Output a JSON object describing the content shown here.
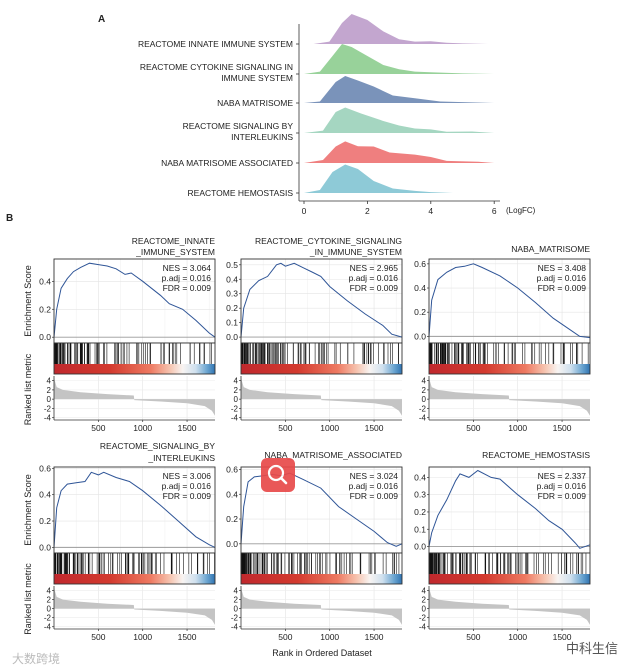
{
  "figure": {
    "panel_a_label": "A",
    "panel_b_label": "B",
    "watermark_left": "大数跨境",
    "watermark_right": "中科生信"
  },
  "chart_data": [
    {
      "type": "area",
      "subtype": "ridgeline",
      "xlabel": "(LogFC)",
      "xlim": [
        0,
        6
      ],
      "xticks": [
        0,
        2,
        4,
        6
      ],
      "series": [
        {
          "name": "REACTOME INNATE IMMUNE SYSTEM",
          "label_lines": [
            "REACTOME INNATE IMMUNE SYSTEM"
          ],
          "color": "#c3a6cf",
          "points": [
            [
              0.3,
              0
            ],
            [
              0.8,
              0.08
            ],
            [
              1.2,
              0.7
            ],
            [
              1.5,
              1
            ],
            [
              2.0,
              0.8
            ],
            [
              2.5,
              0.42
            ],
            [
              3.0,
              0.16
            ],
            [
              3.5,
              0.08
            ],
            [
              4.0,
              0.09
            ],
            [
              4.5,
              0.04
            ],
            [
              5.0,
              0.02
            ],
            [
              5.8,
              0
            ]
          ]
        },
        {
          "name": "REACTOME CYTOKINE SIGNALING IN IMMUNE SYSTEM",
          "label_lines": [
            "REACTOME CYTOKINE SIGNALING IN",
            "IMMUNE SYSTEM"
          ],
          "color": "#98d29a",
          "points": [
            [
              0,
              0
            ],
            [
              0.5,
              0.08
            ],
            [
              0.9,
              0.6
            ],
            [
              1.2,
              1
            ],
            [
              1.5,
              0.9
            ],
            [
              2.0,
              0.6
            ],
            [
              2.5,
              0.3
            ],
            [
              3.0,
              0.16
            ],
            [
              3.5,
              0.08
            ],
            [
              4.0,
              0.06
            ],
            [
              5.0,
              0.02
            ],
            [
              6.0,
              0
            ]
          ]
        },
        {
          "name": "NABA MATRISOME",
          "label_lines": [
            "NABA MATRISOME"
          ],
          "color": "#7a93ba",
          "points": [
            [
              0,
              0
            ],
            [
              0.5,
              0.05
            ],
            [
              1.0,
              0.7
            ],
            [
              1.3,
              0.9
            ],
            [
              1.7,
              0.75
            ],
            [
              2.2,
              0.55
            ],
            [
              2.8,
              0.25
            ],
            [
              3.5,
              0.16
            ],
            [
              4.3,
              0.05
            ],
            [
              6.0,
              0
            ]
          ]
        },
        {
          "name": "REACTOME SIGNALING BY INTERLEUKINS",
          "label_lines": [
            "REACTOME SIGNALING BY",
            "INTERLEUKINS"
          ],
          "color": "#a5d6c1",
          "points": [
            [
              0,
              0
            ],
            [
              0.6,
              0.08
            ],
            [
              1.0,
              0.7
            ],
            [
              1.3,
              0.85
            ],
            [
              1.8,
              0.65
            ],
            [
              2.5,
              0.4
            ],
            [
              3.0,
              0.25
            ],
            [
              3.5,
              0.15
            ],
            [
              4.0,
              0.12
            ],
            [
              4.5,
              0.04
            ],
            [
              5.3,
              0.05
            ],
            [
              6.0,
              0
            ]
          ]
        },
        {
          "name": "NABA MATRISOME ASSOCIATED",
          "label_lines": [
            "NABA MATRISOME ASSOCIATED"
          ],
          "color": "#ef7f7f",
          "points": [
            [
              0,
              0
            ],
            [
              0.6,
              0.1
            ],
            [
              1.0,
              0.55
            ],
            [
              1.3,
              0.72
            ],
            [
              1.7,
              0.56
            ],
            [
              2.2,
              0.55
            ],
            [
              2.7,
              0.35
            ],
            [
              3.5,
              0.28
            ],
            [
              4.0,
              0.2
            ],
            [
              4.5,
              0.07
            ],
            [
              5.5,
              0.04
            ],
            [
              6.0,
              0
            ]
          ]
        },
        {
          "name": "REACTOME HEMOSTASIS",
          "label_lines": [
            "REACTOME HEMOSTASIS"
          ],
          "color": "#8ecad7",
          "points": [
            [
              0,
              0
            ],
            [
              0.5,
              0.1
            ],
            [
              0.9,
              0.7
            ],
            [
              1.3,
              0.95
            ],
            [
              1.7,
              0.8
            ],
            [
              2.2,
              0.4
            ],
            [
              2.8,
              0.15
            ],
            [
              3.5,
              0.07
            ],
            [
              4.0,
              0.03
            ],
            [
              4.7,
              0
            ]
          ]
        }
      ]
    },
    {
      "type": "line",
      "subtype": "gsea",
      "xlabel": "Rank in Ordered Dataset",
      "es_ylabel": "Enrichment Score",
      "metric_ylabel": "Ranked list metric",
      "xlim": [
        0,
        1815
      ],
      "xticks": [
        500,
        1000,
        1500
      ],
      "metric_ylim": [
        -4.5,
        5
      ],
      "metric_yticks": [
        4,
        2,
        0,
        -2,
        -4
      ],
      "line_color": "#2f5597",
      "ranked_metric": [
        [
          0,
          4.6
        ],
        [
          30,
          2.6
        ],
        [
          100,
          2.0
        ],
        [
          300,
          1.5
        ],
        [
          600,
          1.1
        ],
        [
          900,
          0.8
        ],
        [
          905,
          -0.2
        ],
        [
          1200,
          -0.5
        ],
        [
          1500,
          -0.9
        ],
        [
          1700,
          -1.5
        ],
        [
          1780,
          -2.5
        ],
        [
          1815,
          -3.6
        ]
      ],
      "panels": [
        {
          "title_lines": [
            "REACTOME_INNATE",
            "_IMMUNE_SYSTEM"
          ],
          "nes": "NES = 3.064",
          "padj": "p.adj = 0.016",
          "fdr": "FDR = 0.009",
          "ylim": [
            -0.02,
            0.56
          ],
          "yticks": [
            0.0,
            0.2,
            0.4
          ],
          "es": [
            [
              0,
              0
            ],
            [
              30,
              0.2
            ],
            [
              80,
              0.35
            ],
            [
              150,
              0.42
            ],
            [
              220,
              0.47
            ],
            [
              300,
              0.5
            ],
            [
              400,
              0.53
            ],
            [
              500,
              0.52
            ],
            [
              600,
              0.51
            ],
            [
              700,
              0.49
            ],
            [
              800,
              0.45
            ],
            [
              870,
              0.46
            ],
            [
              1000,
              0.4
            ],
            [
              1200,
              0.3
            ],
            [
              1300,
              0.24
            ],
            [
              1450,
              0.2
            ],
            [
              1600,
              0.12
            ],
            [
              1750,
              0.03
            ],
            [
              1815,
              0
            ]
          ]
        },
        {
          "title_lines": [
            "REACTOME_CYTOKINE_SIGNALING",
            "_IN_IMMUNE_SYSTEM"
          ],
          "nes": "NES = 2.965",
          "padj": "p.adj = 0.016",
          "fdr": "FDR = 0.009",
          "ylim": [
            -0.02,
            0.54
          ],
          "yticks": [
            0.0,
            0.1,
            0.2,
            0.3,
            0.4,
            0.5
          ],
          "es": [
            [
              0,
              0
            ],
            [
              30,
              0.2
            ],
            [
              100,
              0.33
            ],
            [
              200,
              0.39
            ],
            [
              300,
              0.42
            ],
            [
              400,
              0.5
            ],
            [
              450,
              0.51
            ],
            [
              500,
              0.49
            ],
            [
              600,
              0.51
            ],
            [
              700,
              0.48
            ],
            [
              800,
              0.45
            ],
            [
              900,
              0.42
            ],
            [
              1000,
              0.35
            ],
            [
              1200,
              0.25
            ],
            [
              1400,
              0.16
            ],
            [
              1600,
              0.08
            ],
            [
              1700,
              0.02
            ],
            [
              1815,
              0
            ]
          ]
        },
        {
          "title_lines": [
            "NABA_MATRISOME"
          ],
          "nes": "NES = 3.408",
          "padj": "p.adj = 0.016",
          "fdr": "FDR = 0.009",
          "ylim": [
            -0.03,
            0.64
          ],
          "yticks": [
            0.0,
            0.2,
            0.4,
            0.6
          ],
          "es": [
            [
              0,
              0
            ],
            [
              30,
              0.3
            ],
            [
              100,
              0.47
            ],
            [
              200,
              0.53
            ],
            [
              300,
              0.57
            ],
            [
              400,
              0.58
            ],
            [
              500,
              0.6
            ],
            [
              600,
              0.57
            ],
            [
              800,
              0.5
            ],
            [
              1000,
              0.4
            ],
            [
              1200,
              0.28
            ],
            [
              1400,
              0.15
            ],
            [
              1600,
              0.05
            ],
            [
              1700,
              0
            ],
            [
              1815,
              -0.01
            ]
          ]
        },
        {
          "title_lines": [
            "REACTOME_SIGNALING_BY",
            "_INTERLEUKINS"
          ],
          "nes": "NES = 3.006",
          "padj": "p.adj = 0.016",
          "fdr": "FDR = 0.009",
          "ylim": [
            -0.02,
            0.61
          ],
          "yticks": [
            0.0,
            0.2,
            0.4,
            0.6
          ],
          "es": [
            [
              0,
              0
            ],
            [
              30,
              0.3
            ],
            [
              80,
              0.43
            ],
            [
              150,
              0.48
            ],
            [
              250,
              0.49
            ],
            [
              350,
              0.5
            ],
            [
              420,
              0.57
            ],
            [
              500,
              0.55
            ],
            [
              560,
              0.57
            ],
            [
              700,
              0.53
            ],
            [
              850,
              0.5
            ],
            [
              1000,
              0.43
            ],
            [
              1200,
              0.32
            ],
            [
              1400,
              0.2
            ],
            [
              1600,
              0.08
            ],
            [
              1750,
              0.02
            ],
            [
              1815,
              0
            ]
          ]
        },
        {
          "title_lines": [
            "NABA_MATRISOME_ASSOCIATED"
          ],
          "nes": "NES = 3.024",
          "padj": "p.adj = 0.016",
          "fdr": "FDR = 0.009",
          "ylim": [
            -0.05,
            0.62
          ],
          "yticks": [
            0.0,
            0.2,
            0.4,
            0.6
          ],
          "es": [
            [
              0,
              0
            ],
            [
              30,
              0.3
            ],
            [
              80,
              0.5
            ],
            [
              150,
              0.54
            ],
            [
              250,
              0.55
            ],
            [
              350,
              0.56
            ],
            [
              450,
              0.55
            ],
            [
              550,
              0.57
            ],
            [
              700,
              0.52
            ],
            [
              900,
              0.45
            ],
            [
              1100,
              0.3
            ],
            [
              1300,
              0.2
            ],
            [
              1500,
              0.1
            ],
            [
              1650,
              0.01
            ],
            [
              1750,
              -0.02
            ],
            [
              1815,
              0
            ]
          ]
        },
        {
          "title_lines": [
            "REACTOME_HEMOSTASIS"
          ],
          "nes": "NES = 2.337",
          "padj": "p.adj = 0.016",
          "fdr": "FDR = 0.009",
          "ylim": [
            -0.02,
            0.46
          ],
          "yticks": [
            0.0,
            0.1,
            0.2,
            0.3,
            0.4
          ],
          "es": [
            [
              0,
              0
            ],
            [
              30,
              0.08
            ],
            [
              100,
              0.18
            ],
            [
              200,
              0.27
            ],
            [
              300,
              0.38
            ],
            [
              350,
              0.42
            ],
            [
              450,
              0.4
            ],
            [
              550,
              0.44
            ],
            [
              700,
              0.4
            ],
            [
              800,
              0.39
            ],
            [
              1000,
              0.3
            ],
            [
              1200,
              0.22
            ],
            [
              1350,
              0.15
            ],
            [
              1500,
              0.1
            ],
            [
              1650,
              0.02
            ],
            [
              1700,
              -0.01
            ],
            [
              1815,
              0.01
            ]
          ]
        }
      ]
    }
  ]
}
